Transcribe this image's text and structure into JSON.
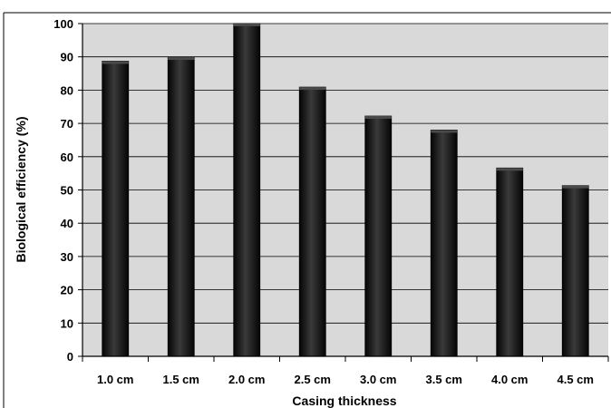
{
  "chart_data": {
    "type": "bar",
    "categories": [
      "1.0 cm",
      "1.5 cm",
      "2.0 cm",
      "2.5 cm",
      "3.0 cm",
      "3.5 cm",
      "4.0 cm",
      "4.5 cm"
    ],
    "series": [
      {
        "values": [
          88.7,
          89.9,
          100,
          80.9,
          72.2,
          68.0,
          56.6,
          51.3
        ]
      }
    ],
    "title": "",
    "xlabel": "Casing thickness",
    "ylabel": "Biological efficiency (%)",
    "ylim": [
      0,
      100
    ],
    "yticks": [
      "0",
      "10",
      "20",
      "30",
      "40",
      "50",
      "60",
      "70",
      "80",
      "90",
      "100"
    ],
    "grid": true,
    "legend": "none",
    "colors": {
      "bar": "#111111",
      "bar_highlight": "#4a4a4a",
      "plot_background": "#d9d9d9",
      "gridline": "#000000"
    }
  }
}
